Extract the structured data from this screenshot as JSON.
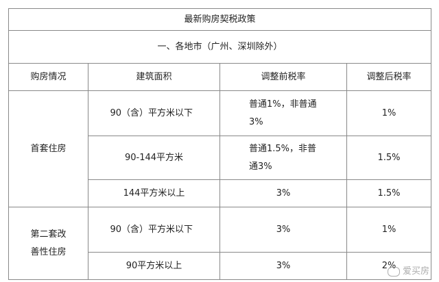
{
  "title": "最新购房契税政策",
  "subtitle": "一、各地市（广州、深圳除外）",
  "table": {
    "header": [
      "购房情况",
      "建筑面积",
      "调整前税率",
      "调整后税率"
    ],
    "groups": [
      {
        "label": "首套住房",
        "rows": [
          [
            "90（含）平方米以下",
            "普通1%，非普通3%",
            "1%"
          ],
          [
            "90-144平方米",
            "普通1.5%，非普通3%",
            "1.5%"
          ],
          [
            "144平方米以上",
            "3%",
            "1.5%"
          ]
        ]
      },
      {
        "label": "第二套改善性住房",
        "rows": [
          [
            "90（含）平方米以下",
            "3%",
            "1%"
          ],
          [
            "90平方米以上",
            "3%",
            "2%"
          ]
        ]
      }
    ]
  },
  "watermark": "爱买房"
}
